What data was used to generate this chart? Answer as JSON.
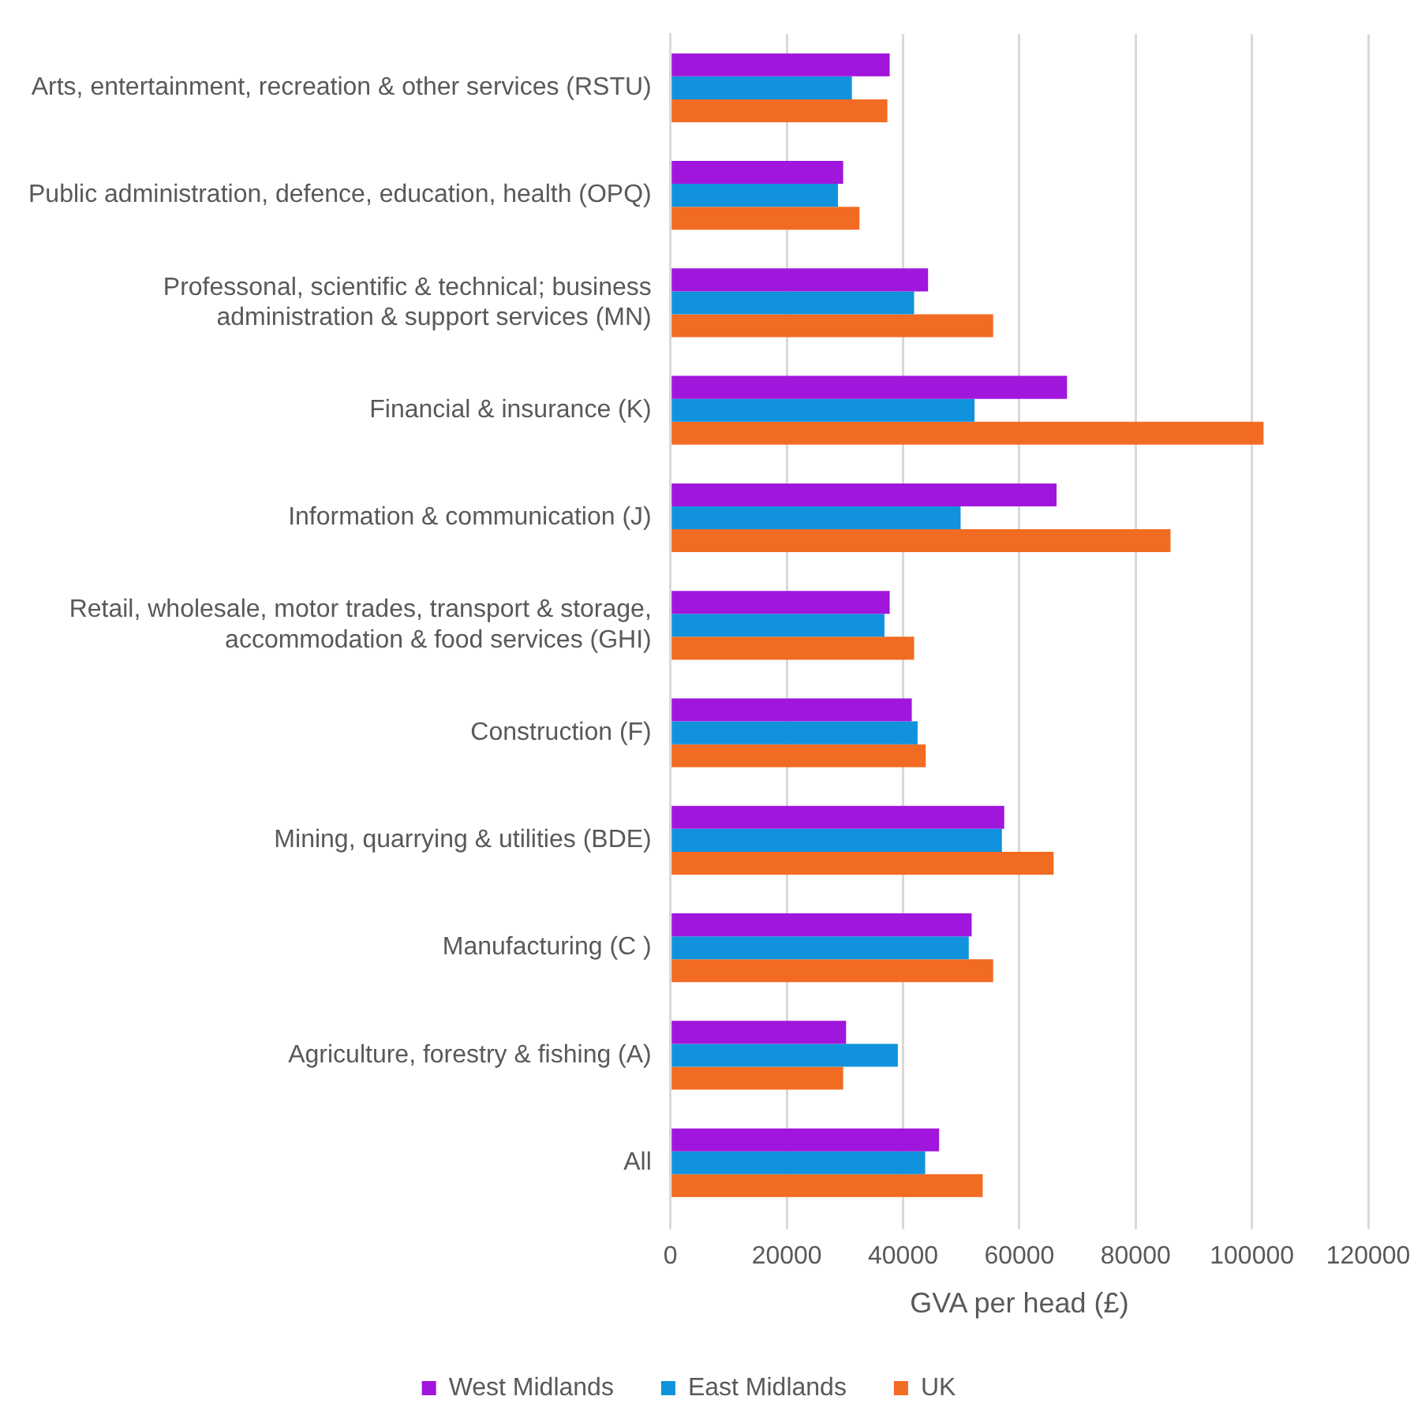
{
  "chart_data": {
    "type": "bar",
    "orientation": "horizontal",
    "xlabel": "GVA per head (£)",
    "categories": [
      "Arts, entertainment, recreation & other services (RSTU)",
      "Public administration, defence, education, health (OPQ)",
      "Professonal, scientific & technical; business administration & support services (MN)",
      "Financial & insurance (K)",
      "Information & communication (J)",
      "Retail, wholesale, motor trades, transport & storage, accommodation & food services (GHI)",
      "Construction (F)",
      "Mining, quarrying & utilities (BDE)",
      "Manufacturing (C )",
      "Agriculture, forestry & fishing (A)",
      "All"
    ],
    "series": [
      {
        "name": "West Midlands",
        "color": "#a016dc",
        "values": [
          37700,
          29700,
          44300,
          68200,
          66400,
          37700,
          41500,
          57400,
          51800,
          30200,
          46200
        ]
      },
      {
        "name": "East Midlands",
        "color": "#1192dc",
        "values": [
          31200,
          28800,
          41900,
          52300,
          49900,
          36800,
          42500,
          57000,
          51300,
          39100,
          43800
        ]
      },
      {
        "name": "UK",
        "color": "#f26b22",
        "values": [
          37300,
          32500,
          55500,
          102000,
          86000,
          41900,
          43900,
          65900,
          55500,
          29700,
          53700
        ]
      }
    ],
    "xlim": [
      0,
      120000
    ],
    "xticks": [
      0,
      20000,
      40000,
      60000,
      80000,
      100000,
      120000
    ],
    "grid": "x",
    "legend": "bottom"
  }
}
